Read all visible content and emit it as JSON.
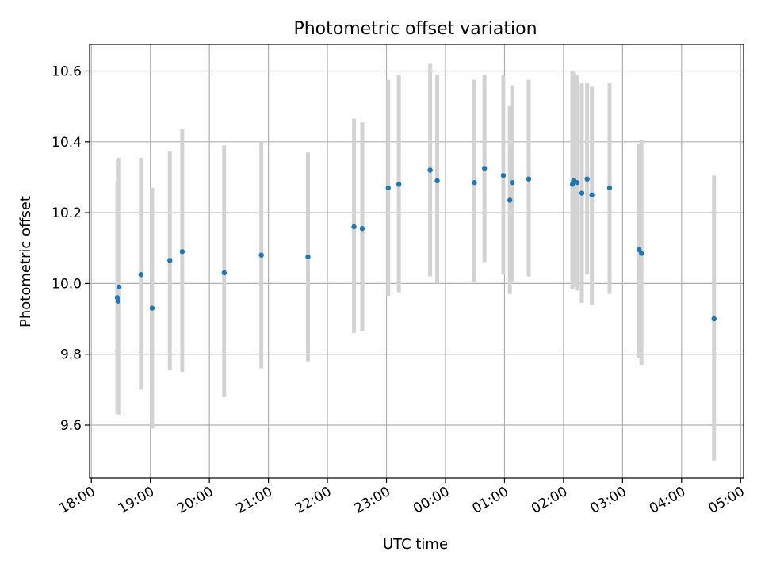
{
  "chart_data": {
    "type": "scatter",
    "title": "Photometric offset variation",
    "xlabel": "UTC time",
    "ylabel": "Photometric offset",
    "x_axis_kind": "time",
    "x_tick_labels": [
      "18:00",
      "19:00",
      "20:00",
      "21:00",
      "22:00",
      "23:00",
      "00:00",
      "01:00",
      "02:00",
      "03:00",
      "04:00",
      "05:00"
    ],
    "x_ticks": [
      "18:00",
      "19:00",
      "20:00",
      "21:00",
      "22:00",
      "23:00",
      "00:00",
      "01:00",
      "02:00",
      "03:00",
      "04:00",
      "05:00"
    ],
    "x_tick_hours": [
      18,
      19,
      20,
      21,
      22,
      23,
      24,
      25,
      26,
      27,
      28,
      29
    ],
    "xlim_hours": [
      17.97,
      29.05
    ],
    "ylim": [
      9.45,
      10.675
    ],
    "y_ticks": [
      9.6,
      9.8,
      10.0,
      10.2,
      10.4,
      10.6
    ],
    "y_tick_labels": [
      "9.6",
      "9.8",
      "10.0",
      "10.2",
      "10.4",
      "10.6"
    ],
    "grid": true,
    "marker_color": "#1f77b4",
    "errorbar_color": "#d3d3d3",
    "points": [
      {
        "t": "18:26",
        "h": 18.44,
        "y": 9.96,
        "lo": 9.635,
        "hi": 10.285
      },
      {
        "t": "18:27",
        "h": 18.45,
        "y": 9.95,
        "lo": 9.63,
        "hi": 10.35
      },
      {
        "t": "18:28",
        "h": 18.47,
        "y": 9.99,
        "lo": 9.63,
        "hi": 10.355
      },
      {
        "t": "18:50",
        "h": 18.84,
        "y": 10.025,
        "lo": 9.7,
        "hi": 10.355
      },
      {
        "t": "19:02",
        "h": 19.03,
        "y": 9.93,
        "lo": 9.59,
        "hi": 10.27
      },
      {
        "t": "19:20",
        "h": 19.33,
        "y": 10.065,
        "lo": 9.755,
        "hi": 10.375
      },
      {
        "t": "19:32",
        "h": 19.54,
        "y": 10.09,
        "lo": 9.75,
        "hi": 10.435
      },
      {
        "t": "20:15",
        "h": 20.25,
        "y": 10.03,
        "lo": 9.68,
        "hi": 10.39
      },
      {
        "t": "20:53",
        "h": 20.88,
        "y": 10.08,
        "lo": 9.76,
        "hi": 10.4
      },
      {
        "t": "21:40",
        "h": 21.67,
        "y": 10.075,
        "lo": 9.78,
        "hi": 10.37
      },
      {
        "t": "22:27",
        "h": 22.45,
        "y": 10.16,
        "lo": 9.86,
        "hi": 10.465
      },
      {
        "t": "22:35",
        "h": 22.59,
        "y": 10.155,
        "lo": 9.865,
        "hi": 10.455
      },
      {
        "t": "23:02",
        "h": 23.03,
        "y": 10.27,
        "lo": 9.965,
        "hi": 10.575
      },
      {
        "t": "23:13",
        "h": 23.21,
        "y": 10.28,
        "lo": 9.975,
        "hi": 10.59
      },
      {
        "t": "23:45",
        "h": 23.74,
        "y": 10.32,
        "lo": 10.02,
        "hi": 10.62
      },
      {
        "t": "23:52",
        "h": 23.86,
        "y": 10.29,
        "lo": 10.0,
        "hi": 10.59
      },
      {
        "t": "00:29",
        "h": 24.49,
        "y": 10.285,
        "lo": 10.005,
        "hi": 10.575
      },
      {
        "t": "00:40",
        "h": 24.66,
        "y": 10.325,
        "lo": 10.06,
        "hi": 10.59
      },
      {
        "t": "00:59",
        "h": 24.98,
        "y": 10.305,
        "lo": 10.025,
        "hi": 10.59
      },
      {
        "t": "01:05",
        "h": 25.09,
        "y": 10.235,
        "lo": 9.97,
        "hi": 10.5
      },
      {
        "t": "01:08",
        "h": 25.13,
        "y": 10.285,
        "lo": 10.005,
        "hi": 10.56
      },
      {
        "t": "01:25",
        "h": 25.41,
        "y": 10.295,
        "lo": 10.02,
        "hi": 10.575
      },
      {
        "t": "02:09",
        "h": 26.15,
        "y": 10.28,
        "lo": 9.985,
        "hi": 10.6
      },
      {
        "t": "02:10",
        "h": 26.17,
        "y": 10.29,
        "lo": 9.99,
        "hi": 10.595
      },
      {
        "t": "02:14",
        "h": 26.23,
        "y": 10.285,
        "lo": 9.98,
        "hi": 10.59
      },
      {
        "t": "02:19",
        "h": 26.31,
        "y": 10.255,
        "lo": 9.945,
        "hi": 10.565
      },
      {
        "t": "02:24",
        "h": 26.4,
        "y": 10.295,
        "lo": 10.025,
        "hi": 10.565
      },
      {
        "t": "02:29",
        "h": 26.48,
        "y": 10.25,
        "lo": 9.94,
        "hi": 10.555
      },
      {
        "t": "02:47",
        "h": 26.78,
        "y": 10.27,
        "lo": 9.97,
        "hi": 10.565
      },
      {
        "t": "03:17",
        "h": 27.28,
        "y": 10.095,
        "lo": 9.79,
        "hi": 10.395
      },
      {
        "t": "03:19",
        "h": 27.32,
        "y": 10.085,
        "lo": 9.77,
        "hi": 10.405
      },
      {
        "t": "04:33",
        "h": 28.55,
        "y": 9.9,
        "lo": 9.5,
        "hi": 10.305
      }
    ]
  }
}
